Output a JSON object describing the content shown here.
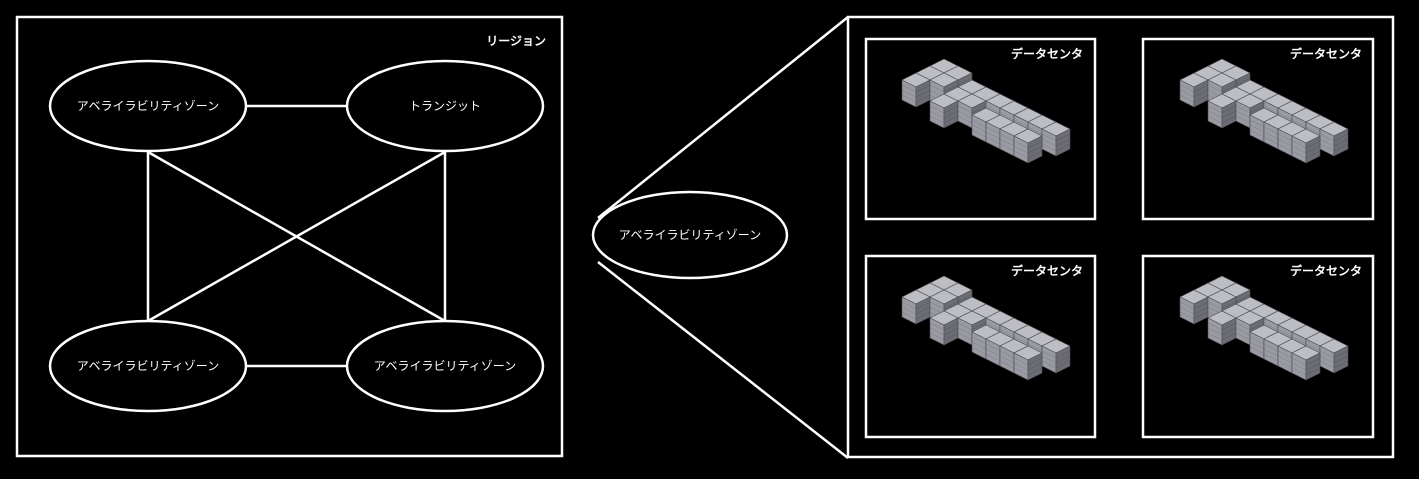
{
  "region": {
    "label": "リージョン",
    "nodes": {
      "az_top_left": "アベライラビリティゾーン",
      "transit": "トランジット",
      "az_bottom_left": "アベライラビリティゾーン",
      "az_bottom_right": "アベライラビリティゾーン"
    }
  },
  "zoom": {
    "az_label": "アベライラビリティゾーン"
  },
  "datacenters": [
    {
      "label": "データセンタ"
    },
    {
      "label": "データセンタ"
    },
    {
      "label": "データセンタ"
    },
    {
      "label": "データセンタ"
    }
  ],
  "colors": {
    "background": "#000000",
    "stroke": "#ffffff",
    "server_light": "#a9a9b0",
    "server_mid": "#8e8e96",
    "server_dark": "#5e5e66"
  }
}
